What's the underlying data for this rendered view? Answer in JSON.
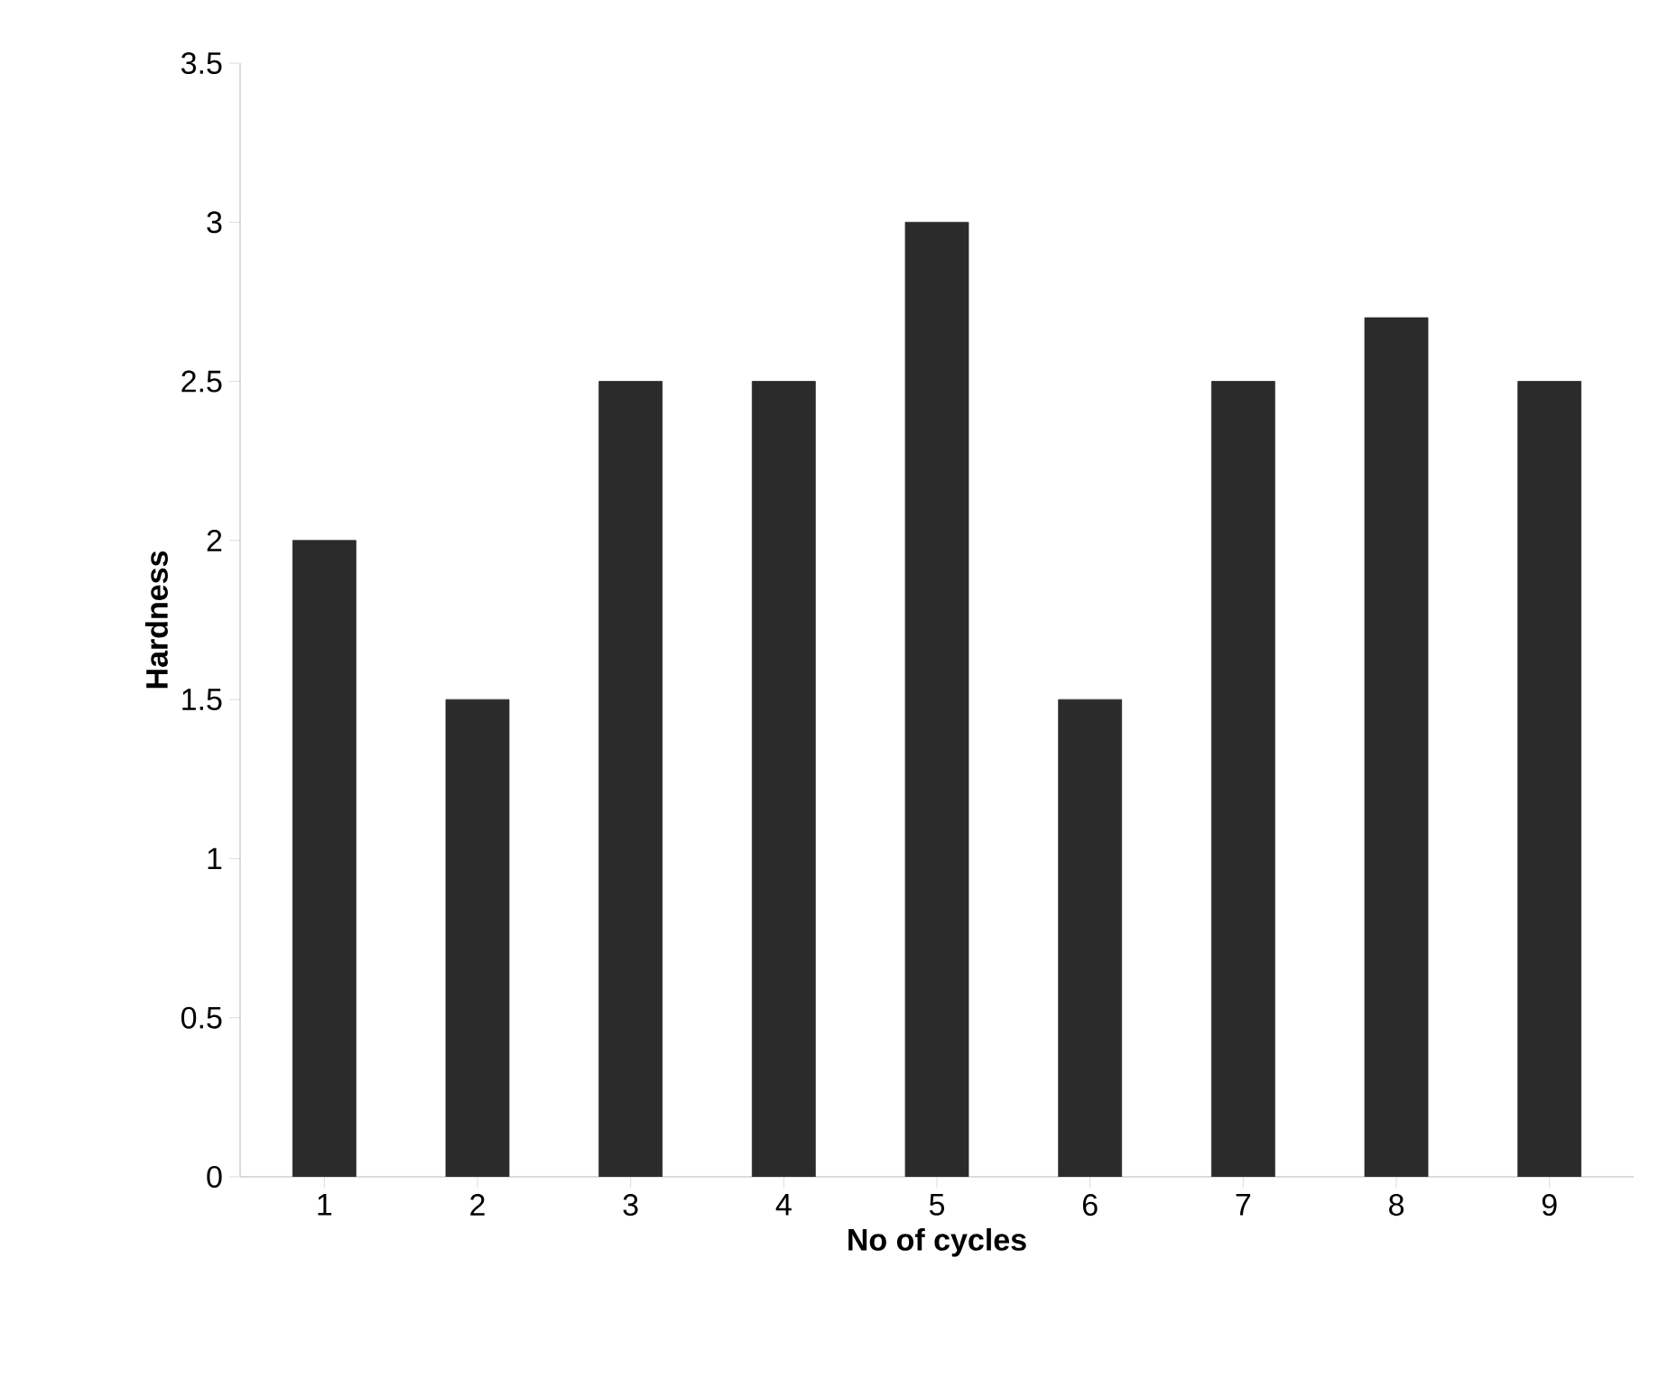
{
  "chart_data": {
    "type": "bar",
    "xlabel": "No of cycles",
    "ylabel": "Hardness",
    "categories": [
      "1",
      "2",
      "3",
      "4",
      "5",
      "6",
      "7",
      "8",
      "9"
    ],
    "values": [
      2,
      1.5,
      2.5,
      2.5,
      3,
      1.5,
      2.5,
      2.7,
      2.5
    ],
    "color": "#2b2b2b",
    "ylim": [
      0,
      3.5
    ],
    "yticks": [
      0,
      0.5,
      1,
      1.5,
      2,
      2.5,
      3,
      3.5
    ]
  }
}
